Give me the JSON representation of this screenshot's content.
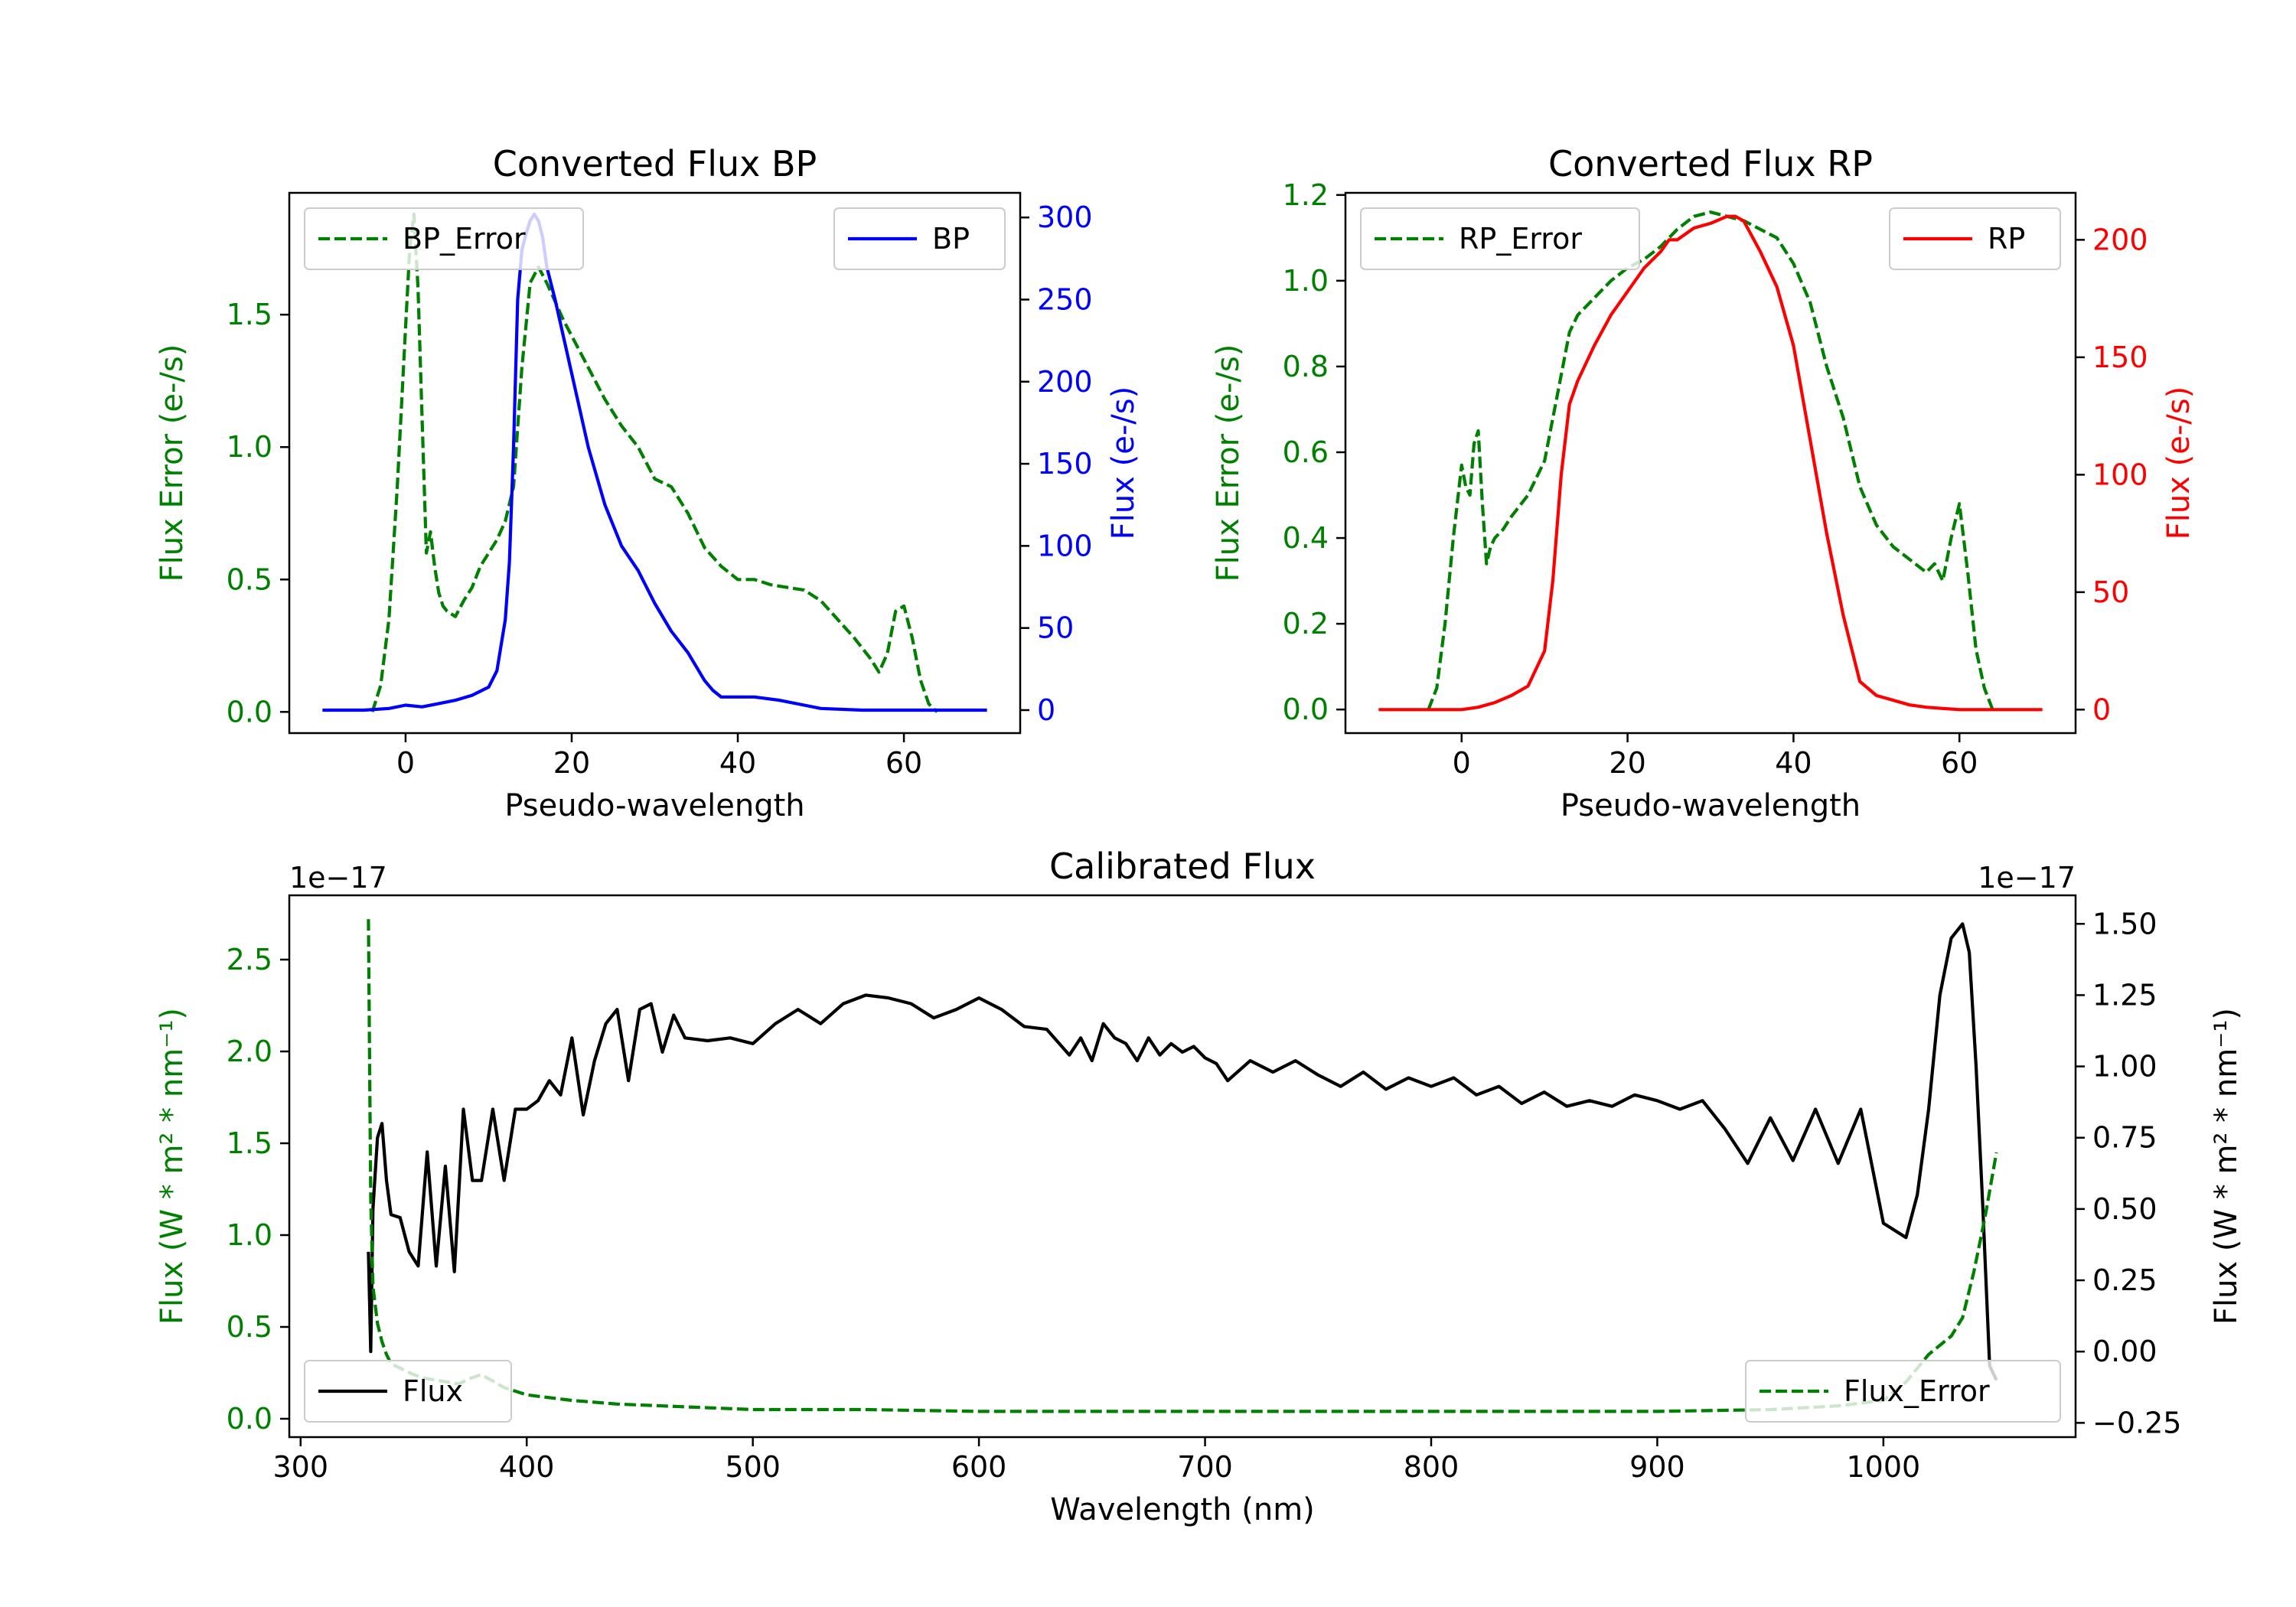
{
  "chart_data": [
    {
      "id": "bp",
      "type": "line",
      "title": "Converted Flux BP",
      "xlabel": "Pseudo-wavelength",
      "xlim": [
        -14,
        74
      ],
      "xticks": [
        0,
        20,
        40,
        60
      ],
      "left_axis": {
        "label": "Flux Error (e-/s)",
        "color": "#008000",
        "ylim": [
          -0.08,
          1.96
        ],
        "ticks": [
          0.0,
          0.5,
          1.0,
          1.5
        ],
        "tick_labels": [
          "0.0",
          "0.5",
          "1.0",
          "1.5"
        ]
      },
      "right_axis": {
        "label": "Flux (e-/s)",
        "color": "#0000ff",
        "ylim": [
          -14,
          315
        ],
        "ticks": [
          0,
          50,
          100,
          150,
          200,
          250,
          300
        ],
        "tick_labels": [
          "0",
          "50",
          "100",
          "150",
          "200",
          "250",
          "300"
        ]
      },
      "series": [
        {
          "name": "BP_Error",
          "axis": "left",
          "color": "#008000",
          "dash": true,
          "x": [
            -4,
            -3,
            -2,
            -1,
            0,
            0.5,
            1,
            1.5,
            2,
            2.5,
            3,
            3.5,
            4,
            4.5,
            5,
            6,
            7,
            8,
            9,
            10,
            11,
            12,
            13,
            14,
            15,
            16,
            17,
            18,
            19,
            20,
            22,
            24,
            26,
            28,
            30,
            32,
            34,
            36,
            38,
            40,
            42,
            44,
            46,
            48,
            50,
            52,
            54,
            56,
            57,
            58,
            59,
            60,
            61,
            62,
            63,
            64
          ],
          "y": [
            0.0,
            0.1,
            0.35,
            0.85,
            1.45,
            1.75,
            1.88,
            1.6,
            1.1,
            0.6,
            0.68,
            0.55,
            0.45,
            0.4,
            0.38,
            0.36,
            0.42,
            0.47,
            0.55,
            0.6,
            0.65,
            0.72,
            0.85,
            1.3,
            1.62,
            1.68,
            1.62,
            1.55,
            1.48,
            1.42,
            1.3,
            1.18,
            1.08,
            1.0,
            0.88,
            0.85,
            0.75,
            0.62,
            0.55,
            0.5,
            0.5,
            0.48,
            0.47,
            0.46,
            0.42,
            0.35,
            0.28,
            0.2,
            0.15,
            0.22,
            0.38,
            0.4,
            0.28,
            0.12,
            0.03,
            0.0
          ]
        },
        {
          "name": "BP",
          "axis": "right",
          "color": "#0000ff",
          "dash": false,
          "x": [
            -10,
            -5,
            -2,
            0,
            2,
            4,
            6,
            8,
            10,
            11,
            12,
            12.5,
            13,
            13.5,
            14,
            14.5,
            15,
            15.5,
            16,
            16.5,
            17,
            18,
            20,
            22,
            24,
            26,
            28,
            30,
            32,
            34,
            36,
            37,
            38,
            40,
            42,
            45,
            48,
            50,
            55,
            60,
            65,
            70
          ],
          "y": [
            0,
            0,
            1,
            3,
            2,
            4,
            6,
            9,
            14,
            24,
            55,
            90,
            160,
            250,
            280,
            290,
            298,
            302,
            298,
            288,
            270,
            250,
            205,
            160,
            125,
            100,
            85,
            65,
            48,
            35,
            18,
            12,
            8,
            8,
            8,
            6,
            3,
            1,
            0,
            0,
            0,
            0
          ]
        }
      ],
      "legend": [
        {
          "label": "BP_Error",
          "position": "top-left"
        },
        {
          "label": "BP",
          "position": "top-right"
        }
      ]
    },
    {
      "id": "rp",
      "type": "line",
      "title": "Converted Flux RP",
      "xlabel": "Pseudo-wavelength",
      "xlim": [
        -14,
        74
      ],
      "xticks": [
        0,
        20,
        40,
        60
      ],
      "left_axis": {
        "label": "Flux Error (e-/s)",
        "color": "#008000",
        "ylim": [
          -0.055,
          1.205
        ],
        "ticks": [
          0.0,
          0.2,
          0.4,
          0.6,
          0.8,
          1.0,
          1.2
        ],
        "tick_labels": [
          "0.0",
          "0.2",
          "0.4",
          "0.6",
          "0.8",
          "1.0",
          "1.2"
        ]
      },
      "right_axis": {
        "label": "Flux (e-/s)",
        "color": "#ff0000",
        "ylim": [
          -10,
          220
        ],
        "ticks": [
          0,
          50,
          100,
          150,
          200
        ],
        "tick_labels": [
          "0",
          "50",
          "100",
          "150",
          "200"
        ]
      },
      "series": [
        {
          "name": "RP_Error",
          "axis": "left",
          "color": "#008000",
          "dash": true,
          "x": [
            -4,
            -3,
            -2,
            -1,
            0,
            0.5,
            1,
            1.5,
            2,
            2.5,
            3,
            3.5,
            4,
            5,
            6,
            8,
            10,
            12,
            13,
            14,
            16,
            18,
            20,
            22,
            24,
            26,
            28,
            30,
            32,
            34,
            36,
            38,
            40,
            42,
            44,
            46,
            48,
            50,
            52,
            54,
            56,
            57,
            58,
            59,
            60,
            61,
            62,
            63,
            64
          ],
          "y": [
            0.0,
            0.05,
            0.2,
            0.4,
            0.57,
            0.52,
            0.5,
            0.62,
            0.65,
            0.48,
            0.34,
            0.38,
            0.4,
            0.42,
            0.45,
            0.5,
            0.58,
            0.78,
            0.88,
            0.92,
            0.96,
            1.0,
            1.03,
            1.05,
            1.08,
            1.12,
            1.15,
            1.16,
            1.15,
            1.14,
            1.12,
            1.1,
            1.04,
            0.95,
            0.8,
            0.68,
            0.52,
            0.43,
            0.38,
            0.35,
            0.32,
            0.34,
            0.3,
            0.4,
            0.48,
            0.32,
            0.14,
            0.05,
            0.0
          ]
        },
        {
          "name": "RP",
          "axis": "right",
          "color": "#ff0000",
          "dash": false,
          "x": [
            -10,
            -5,
            0,
            2,
            4,
            6,
            8,
            10,
            11,
            12,
            13,
            14,
            16,
            18,
            20,
            22,
            24,
            25,
            26,
            28,
            30,
            32,
            33,
            34,
            36,
            38,
            40,
            42,
            44,
            46,
            48,
            50,
            52,
            54,
            56,
            58,
            60,
            62,
            65,
            70
          ],
          "y": [
            0,
            0,
            0,
            1,
            3,
            6,
            10,
            25,
            55,
            100,
            130,
            140,
            155,
            168,
            178,
            188,
            195,
            200,
            200,
            205,
            207,
            210,
            210,
            208,
            195,
            180,
            155,
            115,
            75,
            40,
            12,
            6,
            4,
            2,
            1,
            0.5,
            0,
            0,
            0,
            0
          ]
        }
      ],
      "legend": [
        {
          "label": "RP_Error",
          "position": "top-left"
        },
        {
          "label": "RP",
          "position": "top-right"
        }
      ]
    },
    {
      "id": "cal",
      "type": "line",
      "title": "Calibrated Flux",
      "xlabel": "Wavelength (nm)",
      "xlim": [
        295,
        1085
      ],
      "xticks": [
        300,
        400,
        500,
        600,
        700,
        800,
        900,
        1000
      ],
      "left_axis": {
        "label": "Flux (W * m² * nm⁻¹)",
        "color": "#008000",
        "offset": "1e−17",
        "ylim": [
          -0.1,
          2.85
        ],
        "ticks": [
          0.0,
          0.5,
          1.0,
          1.5,
          2.0,
          2.5
        ],
        "tick_labels": [
          "0.0",
          "0.5",
          "1.0",
          "1.5",
          "2.0",
          "2.5"
        ]
      },
      "right_axis": {
        "label": "Flux (W * m² * nm⁻¹)",
        "color": "#000000",
        "offset": "1e−17",
        "ylim": [
          -0.3,
          1.6
        ],
        "ticks": [
          -0.25,
          0.0,
          0.25,
          0.5,
          0.75,
          1.0,
          1.25,
          1.5
        ],
        "tick_labels": [
          "−0.25",
          "0.00",
          "0.25",
          "0.50",
          "0.75",
          "1.00",
          "1.25",
          "1.50"
        ]
      },
      "series": [
        {
          "name": "Flux",
          "axis": "right",
          "color": "#000000",
          "dash": false,
          "x": [
            330,
            331,
            332,
            334,
            336,
            338,
            340,
            344,
            348,
            352,
            356,
            360,
            364,
            368,
            372,
            376,
            380,
            385,
            390,
            395,
            400,
            405,
            410,
            415,
            420,
            425,
            430,
            435,
            440,
            445,
            450,
            455,
            460,
            465,
            470,
            480,
            490,
            500,
            510,
            520,
            530,
            540,
            550,
            560,
            570,
            580,
            590,
            600,
            610,
            620,
            630,
            640,
            645,
            650,
            655,
            660,
            665,
            670,
            675,
            680,
            685,
            690,
            695,
            700,
            705,
            710,
            720,
            730,
            740,
            750,
            760,
            770,
            780,
            790,
            800,
            810,
            820,
            830,
            840,
            850,
            860,
            870,
            880,
            890,
            900,
            910,
            920,
            930,
            940,
            950,
            960,
            970,
            980,
            990,
            1000,
            1010,
            1015,
            1020,
            1025,
            1030,
            1035,
            1038,
            1041,
            1044,
            1047,
            1050
          ],
          "y": [
            0.35,
            0.0,
            0.5,
            0.75,
            0.8,
            0.6,
            0.48,
            0.47,
            0.35,
            0.3,
            0.7,
            0.3,
            0.65,
            0.28,
            0.85,
            0.6,
            0.6,
            0.85,
            0.6,
            0.85,
            0.85,
            0.88,
            0.95,
            0.9,
            1.1,
            0.83,
            1.02,
            1.15,
            1.2,
            0.95,
            1.2,
            1.22,
            1.05,
            1.18,
            1.1,
            1.09,
            1.1,
            1.08,
            1.15,
            1.2,
            1.15,
            1.22,
            1.25,
            1.24,
            1.22,
            1.17,
            1.2,
            1.24,
            1.2,
            1.14,
            1.13,
            1.04,
            1.1,
            1.02,
            1.15,
            1.1,
            1.08,
            1.02,
            1.1,
            1.04,
            1.08,
            1.05,
            1.07,
            1.03,
            1.01,
            0.95,
            1.02,
            0.98,
            1.02,
            0.97,
            0.93,
            0.98,
            0.92,
            0.96,
            0.93,
            0.96,
            0.9,
            0.93,
            0.87,
            0.91,
            0.86,
            0.88,
            0.86,
            0.9,
            0.88,
            0.85,
            0.88,
            0.78,
            0.66,
            0.82,
            0.67,
            0.85,
            0.66,
            0.85,
            0.45,
            0.4,
            0.55,
            0.85,
            1.25,
            1.45,
            1.5,
            1.4,
            1.0,
            0.5,
            -0.05,
            -0.1
          ]
        },
        {
          "name": "Flux_Error",
          "axis": "left",
          "color": "#008000",
          "dash": true,
          "x": [
            330,
            331,
            332,
            334,
            336,
            338,
            340,
            345,
            350,
            355,
            360,
            365,
            370,
            375,
            380,
            390,
            400,
            420,
            440,
            460,
            480,
            500,
            550,
            600,
            650,
            700,
            750,
            800,
            850,
            900,
            950,
            980,
            1000,
            1010,
            1020,
            1030,
            1035,
            1040,
            1045,
            1050
          ],
          "y": [
            2.72,
            1.2,
            0.72,
            0.52,
            0.42,
            0.35,
            0.3,
            0.27,
            0.24,
            0.22,
            0.21,
            0.2,
            0.19,
            0.22,
            0.24,
            0.17,
            0.13,
            0.1,
            0.08,
            0.07,
            0.06,
            0.05,
            0.05,
            0.04,
            0.04,
            0.04,
            0.04,
            0.04,
            0.04,
            0.04,
            0.05,
            0.07,
            0.1,
            0.2,
            0.35,
            0.45,
            0.55,
            0.8,
            1.1,
            1.45
          ]
        }
      ],
      "legend": [
        {
          "label": "Flux",
          "position": "lower-left"
        },
        {
          "label": "Flux_Error",
          "position": "lower-right"
        }
      ]
    }
  ]
}
